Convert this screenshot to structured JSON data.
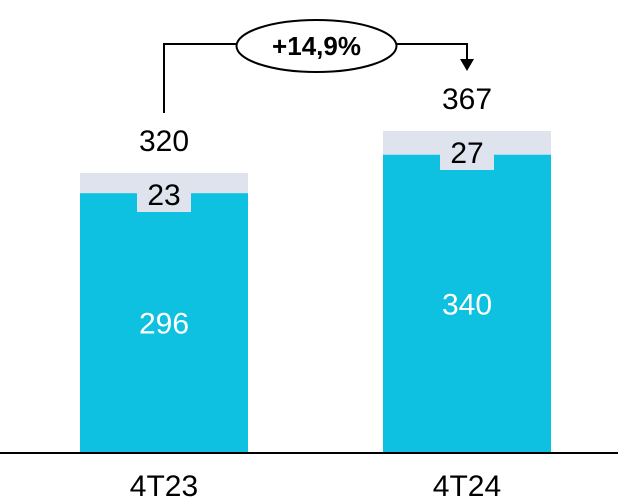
{
  "chart_data": {
    "type": "bar",
    "stacked": true,
    "categories": [
      "4T23",
      "4T24"
    ],
    "series": [
      {
        "values": [
          296,
          340
        ],
        "color": "#0ec1e0",
        "label_color": "#ffffff"
      },
      {
        "values": [
          23,
          27
        ],
        "color": "#dfe3ee",
        "label_color": "#000000"
      }
    ],
    "totals": [
      "320",
      "367"
    ],
    "segment_labels": [
      [
        "296",
        "340"
      ],
      [
        "23",
        "27"
      ]
    ],
    "annotation": {
      "text": "+14,9%",
      "from": "4T23",
      "to": "4T24"
    },
    "title": "",
    "xlabel": "",
    "ylabel": "",
    "ylim": [
      0,
      367
    ],
    "grid": false,
    "legend": "none"
  }
}
